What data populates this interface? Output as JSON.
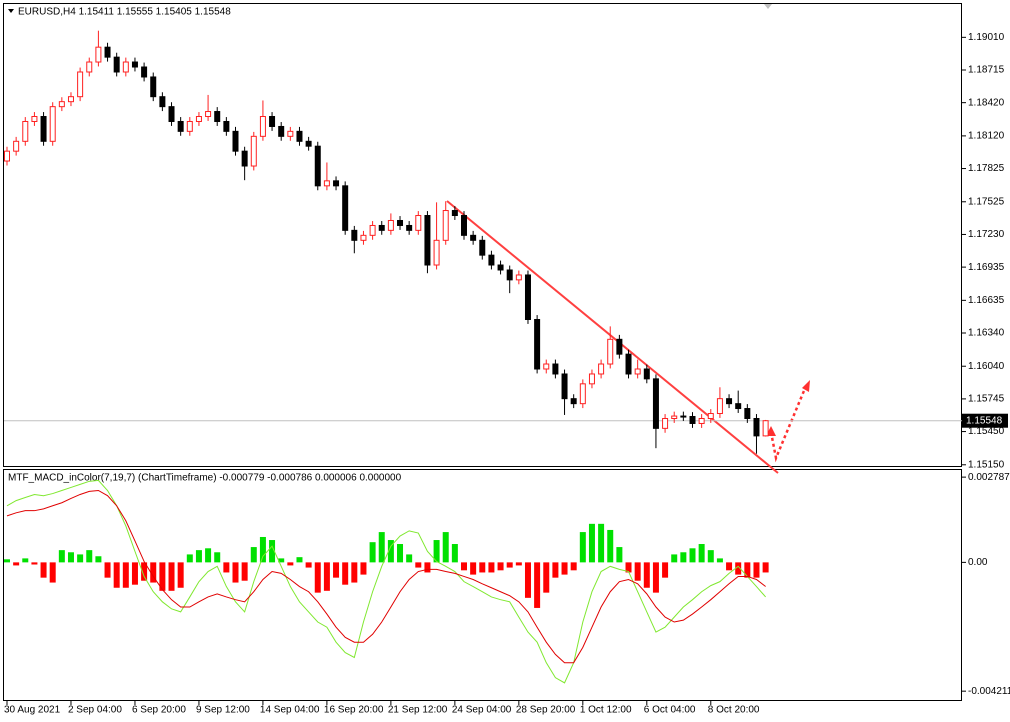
{
  "chart_data": [
    {
      "type": "candlestick",
      "title": "EURUSD,H4  1.15411 1.15555 1.15405 1.15548",
      "categories": [
        "30 Aug 2021",
        null,
        null,
        null,
        null,
        null,
        null,
        "2 Sep 04:00",
        null,
        null,
        null,
        null,
        null,
        null,
        "6 Sep 20:00",
        null,
        null,
        null,
        null,
        null,
        null,
        "9 Sep 12:00",
        null,
        null,
        null,
        null,
        null,
        null,
        "14 Sep 04:00",
        null,
        null,
        null,
        null,
        null,
        null,
        "16 Sep 20:00",
        null,
        null,
        null,
        null,
        null,
        null,
        "21 Sep 12:00",
        null,
        null,
        null,
        null,
        null,
        null,
        "24 Sep 04:00",
        null,
        null,
        null,
        null,
        null,
        null,
        "28 Sep 20:00",
        null,
        null,
        null,
        null,
        null,
        null,
        "1 Oct 12:00",
        null,
        null,
        null,
        null,
        null,
        null,
        "6 Oct 04:00",
        null,
        null,
        null,
        null,
        null,
        null,
        "8 Oct 20:00",
        null,
        null,
        null,
        null,
        null,
        null
      ],
      "open": [
        1.17893,
        1.17982,
        1.18071,
        1.1825,
        1.18295,
        1.18071,
        1.18384,
        1.18429,
        1.18474,
        1.18697,
        1.18787,
        1.18921,
        1.18831,
        1.18697,
        1.18787,
        1.18742,
        1.18652,
        1.18474,
        1.18384,
        1.1825,
        1.18161,
        1.1825,
        1.18295,
        1.1834,
        1.1825,
        1.18161,
        1.17982,
        1.17848,
        1.18116,
        1.18295,
        1.18205,
        1.18116,
        1.18161,
        1.18071,
        1.18027,
        1.17669,
        1.17714,
        1.17669,
        1.17267,
        1.17177,
        1.17222,
        1.17311,
        1.17267,
        1.17356,
        1.17311,
        1.17267,
        1.17401,
        1.16954,
        1.17177,
        1.17446,
        1.17401,
        1.17222,
        1.17177,
        1.17043,
        1.16954,
        1.16909,
        1.1682,
        1.16864,
        1.16462,
        1.16015,
        1.1606,
        1.1597,
        1.15747,
        1.15702,
        1.15881,
        1.1597,
        1.1606,
        1.16283,
        1.16149,
        1.1597,
        1.16015,
        1.15926,
        1.15479,
        1.15568,
        1.1559,
        1.15586,
        1.15523,
        1.15568,
        1.15613,
        1.15747,
        1.15702,
        1.15658,
        1.15568,
        1.15411
      ],
      "high": [
        1.18022,
        1.18111,
        1.1829,
        1.18335,
        1.18335,
        1.18424,
        1.18469,
        1.18514,
        1.18737,
        1.18827,
        1.1907,
        1.18961,
        1.18871,
        1.18827,
        1.18827,
        1.18782,
        1.18692,
        1.18514,
        1.18424,
        1.1829,
        1.1829,
        1.18335,
        1.1849,
        1.1838,
        1.1829,
        1.18201,
        1.18022,
        1.18156,
        1.1844,
        1.18335,
        1.18245,
        1.18201,
        1.18201,
        1.18111,
        1.18067,
        1.1788,
        1.17754,
        1.17709,
        1.17307,
        1.17262,
        1.17351,
        1.17351,
        1.1742,
        1.17396,
        1.17351,
        1.17441,
        1.17441,
        1.1752,
        1.1753,
        1.17486,
        1.17441,
        1.17262,
        1.17217,
        1.17083,
        1.16994,
        1.16949,
        1.16904,
        1.16904,
        1.16502,
        1.161,
        1.161,
        1.1601,
        1.15787,
        1.15921,
        1.1601,
        1.161,
        1.164,
        1.16323,
        1.16189,
        1.161,
        1.16055,
        1.15966,
        1.15608,
        1.1563,
        1.1563,
        1.15626,
        1.15608,
        1.15653,
        1.1585,
        1.15787,
        1.1582,
        1.15698,
        1.15608,
        1.15555
      ],
      "low": [
        1.17853,
        1.17942,
        1.18031,
        1.1821,
        1.18031,
        1.18031,
        1.18344,
        1.18389,
        1.18434,
        1.18657,
        1.18747,
        1.18791,
        1.18657,
        1.18657,
        1.18702,
        1.18612,
        1.18434,
        1.18344,
        1.1821,
        1.18121,
        1.18121,
        1.1821,
        1.18255,
        1.1821,
        1.18121,
        1.17942,
        1.1772,
        1.17808,
        1.18076,
        1.18165,
        1.18076,
        1.18076,
        1.18031,
        1.17987,
        1.17629,
        1.17629,
        1.17629,
        1.17227,
        1.1706,
        1.17137,
        1.17182,
        1.17227,
        1.17227,
        1.17271,
        1.17227,
        1.17227,
        1.1688,
        1.16914,
        1.17137,
        1.17361,
        1.17182,
        1.17137,
        1.17003,
        1.16914,
        1.16869,
        1.167,
        1.1678,
        1.16422,
        1.15975,
        1.15975,
        1.1593,
        1.156,
        1.15662,
        1.15662,
        1.15841,
        1.1593,
        1.1602,
        1.16109,
        1.1593,
        1.1593,
        1.15886,
        1.153,
        1.15439,
        1.15528,
        1.15546,
        1.15483,
        1.15483,
        1.15528,
        1.15573,
        1.15662,
        1.15618,
        1.15528,
        1.1525,
        1.15405
      ],
      "close": [
        1.17982,
        1.18071,
        1.1825,
        1.18295,
        1.18071,
        1.18384,
        1.18429,
        1.18474,
        1.18697,
        1.18787,
        1.18921,
        1.18831,
        1.18697,
        1.18787,
        1.18742,
        1.18652,
        1.18474,
        1.18384,
        1.1825,
        1.18161,
        1.1825,
        1.18295,
        1.1834,
        1.1825,
        1.18161,
        1.17982,
        1.17848,
        1.18116,
        1.18295,
        1.18205,
        1.18116,
        1.18161,
        1.18071,
        1.18027,
        1.17669,
        1.17714,
        1.17669,
        1.17267,
        1.17177,
        1.17222,
        1.17311,
        1.17267,
        1.17356,
        1.17311,
        1.17267,
        1.17401,
        1.16954,
        1.17177,
        1.17446,
        1.17401,
        1.17222,
        1.17177,
        1.17043,
        1.16954,
        1.16909,
        1.1682,
        1.16864,
        1.16462,
        1.16015,
        1.1606,
        1.1597,
        1.15747,
        1.15702,
        1.15881,
        1.1597,
        1.1606,
        1.16283,
        1.16149,
        1.1597,
        1.16015,
        1.15926,
        1.15479,
        1.15568,
        1.1559,
        1.15586,
        1.15523,
        1.15568,
        1.15613,
        1.15747,
        1.15702,
        1.15658,
        1.15568,
        1.15411,
        1.15548
      ],
      "up_color": "#ff2020",
      "down_color": "#000000",
      "ylim": [
        1.1513,
        1.1932
      ],
      "yticks": [
        {
          "value": 1.1901,
          "label": "1.19010"
        },
        1.18715,
        {
          "value": 1.1842,
          "label": "1.18420"
        },
        {
          "value": 1.1812,
          "label": "1.18120"
        },
        1.17825,
        1.17525,
        {
          "value": 1.1723,
          "label": "1.17230"
        },
        1.16935,
        1.16635,
        {
          "value": 1.1634,
          "label": "1.16340"
        },
        {
          "value": 1.1604,
          "label": "1.16040"
        },
        1.15745,
        {
          "value": 1.1545,
          "label": "1.15450"
        },
        {
          "value": 1.1515,
          "label": "1.15150"
        }
      ],
      "current_price": 1.15548
    },
    {
      "type": "macd",
      "title": "MTF_MACD_inColor(7,19,7) (ChartTimeframe) -0.000779 -0.000786 0.000006 0.000000",
      "histogram": {
        "up_color": "#00e000",
        "down_color": "#ff0000",
        "values": [
          0.0001,
          -0.0001,
          0.00013,
          -7e-05,
          -0.0005,
          -0.00066,
          0.0004,
          0.00033,
          0.00026,
          0.0004,
          0.0002,
          -0.0005,
          -0.00083,
          -0.00083,
          -0.00073,
          -0.0006,
          -0.00066,
          -0.00093,
          -0.00093,
          -0.00083,
          0.00026,
          0.0004,
          0.00046,
          0.00033,
          -0.00033,
          -0.00066,
          -0.0006,
          0.0005,
          0.00083,
          0.00073,
          0.00013,
          -0.0001,
          0.00017,
          -0.00017,
          -0.00099,
          -0.00093,
          -0.0005,
          -0.00073,
          -0.00066,
          -0.0004,
          0.00066,
          0.00099,
          0.00073,
          0.0006,
          0.00026,
          -0.00017,
          -0.00033,
          0.00073,
          0.00099,
          0.0006,
          -0.00026,
          -0.0004,
          -0.00033,
          -0.00033,
          -0.00026,
          -0.00017,
          -0.0001,
          -0.00116,
          -0.00149,
          -0.00099,
          -0.0005,
          -0.0004,
          -0.00026,
          0.00099,
          0.00126,
          0.00126,
          0.00106,
          0.0005,
          -0.00033,
          -0.0006,
          -0.00083,
          -0.00099,
          -0.0005,
          0.00026,
          0.00033,
          0.00046,
          0.0006,
          0.0004,
          0.00013,
          -0.00026,
          -0.0004,
          -0.0005,
          -0.0005,
          -0.00033
        ]
      },
      "series": [
        {
          "color": "#80e830",
          "values": [
            0.00185,
            0.00202,
            0.00212,
            0.00222,
            0.00218,
            0.00225,
            0.00235,
            0.00245,
            0.00255,
            0.00265,
            0.00268,
            0.00235,
            0.00185,
            0.00119,
            0.00036,
            -0.00046,
            -0.00096,
            -0.00129,
            -0.00152,
            -0.00162,
            -0.00113,
            -0.00063,
            -0.0003,
            -0.00013,
            -0.00079,
            -0.00129,
            -0.00162,
            -0.00063,
            0.0002,
            0.00053,
            -0.00013,
            -0.00079,
            -0.00129,
            -0.00162,
            -0.00195,
            -0.00212,
            -0.00261,
            -0.00295,
            -0.00311,
            -0.00195,
            -0.00096,
            -0.00013,
            0.00053,
            0.00086,
            0.00103,
            0.00096,
            0.00036,
            3e-05,
            -0.00013,
            -0.0003,
            -0.00063,
            -0.00079,
            -0.00096,
            -0.00113,
            -0.00122,
            -0.00129,
            -0.00179,
            -0.00228,
            -0.00261,
            -0.00328,
            -0.00377,
            -0.00394,
            -0.00328,
            -0.00195,
            -0.00096,
            -0.0003,
            -0.00013,
            -0.00023,
            -0.0003,
            -0.00096,
            -0.00162,
            -0.00228,
            -0.00212,
            -0.00179,
            -0.00146,
            -0.00122,
            -0.00096,
            -0.00076,
            -0.00063,
            -0.00036,
            -0.00013,
            -0.00046,
            -0.00079,
            -0.00113
          ]
        },
        {
          "color": "#e00000",
          "values": [
            0.00152,
            0.00162,
            0.00169,
            0.00169,
            0.00175,
            0.00185,
            0.00195,
            0.00209,
            0.00222,
            0.00232,
            0.00235,
            0.00218,
            0.00185,
            0.00136,
            0.0007,
            3e-05,
            -0.00046,
            -0.00089,
            -0.00122,
            -0.00146,
            -0.00146,
            -0.00129,
            -0.00113,
            -0.00103,
            -0.00113,
            -0.00122,
            -0.00129,
            -0.00096,
            -0.00056,
            -0.0003,
            -0.00036,
            -0.00056,
            -0.00079,
            -0.00096,
            -0.00129,
            -0.00169,
            -0.00212,
            -0.00245,
            -0.00261,
            -0.00261,
            -0.00235,
            -0.00195,
            -0.00146,
            -0.00096,
            -0.00056,
            -0.0003,
            -0.00023,
            -0.00023,
            -0.0003,
            -0.00036,
            -0.00046,
            -0.00056,
            -0.0007,
            -0.00083,
            -0.00096,
            -0.00109,
            -0.00129,
            -0.00162,
            -0.00212,
            -0.00261,
            -0.00301,
            -0.00328,
            -0.00328,
            -0.00278,
            -0.00212,
            -0.00146,
            -0.00096,
            -0.00063,
            -0.00056,
            -0.0007,
            -0.00103,
            -0.00146,
            -0.00179,
            -0.00195,
            -0.00189,
            -0.00169,
            -0.00146,
            -0.00122,
            -0.00096,
            -0.0007,
            -0.00046,
            -0.00046,
            -0.00056,
            -0.00079
          ]
        }
      ],
      "ylim": [
        -0.0045,
        0.00302
      ],
      "yticks": [
        0.002787,
        {
          "value": 0,
          "label": "0.00"
        },
        -0.004211
      ]
    }
  ]
}
